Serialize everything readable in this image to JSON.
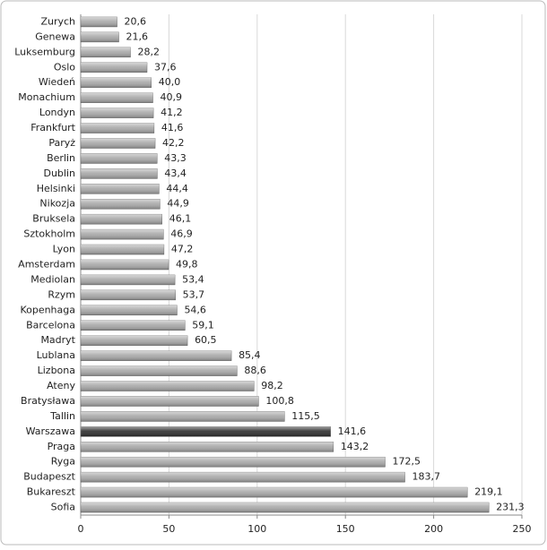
{
  "chart_data": {
    "type": "barh",
    "categories": [
      "Zurych",
      "Genewa",
      "Luksemburg",
      "Oslo",
      "Wiedeń",
      "Monachium",
      "Londyn",
      "Frankfurt",
      "Paryż",
      "Berlin",
      "Dublin",
      "Helsinki",
      "Nikozja",
      "Bruksela",
      "Sztokholm",
      "Lyon",
      "Amsterdam",
      "Mediolan",
      "Rzym",
      "Kopenhaga",
      "Barcelona",
      "Madryt",
      "Lublana",
      "Lizbona",
      "Ateny",
      "Bratysława",
      "Tallin",
      "Warszawa",
      "Praga",
      "Ryga",
      "Budapeszt",
      "Bukareszt",
      "Sofia"
    ],
    "values": [
      20.6,
      21.6,
      28.2,
      37.6,
      40.0,
      40.9,
      41.2,
      41.6,
      42.2,
      43.3,
      43.4,
      44.4,
      44.9,
      46.1,
      46.9,
      47.2,
      49.8,
      53.4,
      53.7,
      54.6,
      59.1,
      60.5,
      85.4,
      88.6,
      98.2,
      100.8,
      115.5,
      141.6,
      143.2,
      172.5,
      183.7,
      219.1,
      231.3
    ],
    "value_labels": [
      "20,6",
      "21,6",
      "28,2",
      "37,6",
      "40,0",
      "40,9",
      "41,2",
      "41,6",
      "42,2",
      "43,3",
      "43,4",
      "44,4",
      "44,9",
      "46,1",
      "46,9",
      "47,2",
      "49,8",
      "53,4",
      "53,7",
      "54,6",
      "59,1",
      "60,5",
      "85,4",
      "88,6",
      "98,2",
      "100,8",
      "115,5",
      "141,6",
      "143,2",
      "172,5",
      "183,7",
      "219,1",
      "231,3"
    ],
    "colors": [
      "#a8a8a8",
      "#a8a8a8",
      "#a8a8a8",
      "#a8a8a8",
      "#a8a8a8",
      "#a8a8a8",
      "#a8a8a8",
      "#a8a8a8",
      "#a8a8a8",
      "#a8a8a8",
      "#a8a8a8",
      "#a8a8a8",
      "#a8a8a8",
      "#a8a8a8",
      "#a8a8a8",
      "#a8a8a8",
      "#a8a8a8",
      "#a8a8a8",
      "#a8a8a8",
      "#a8a8a8",
      "#a8a8a8",
      "#a8a8a8",
      "#a8a8a8",
      "#a8a8a8",
      "#a8a8a8",
      "#a8a8a8",
      "#a8a8a8",
      "#2e2e2e",
      "#a8a8a8",
      "#a8a8a8",
      "#a8a8a8",
      "#a8a8a8",
      "#a8a8a8"
    ],
    "xlim": [
      0,
      250
    ],
    "xticks": [
      0,
      50,
      100,
      150,
      200,
      250
    ],
    "grid": true
  }
}
